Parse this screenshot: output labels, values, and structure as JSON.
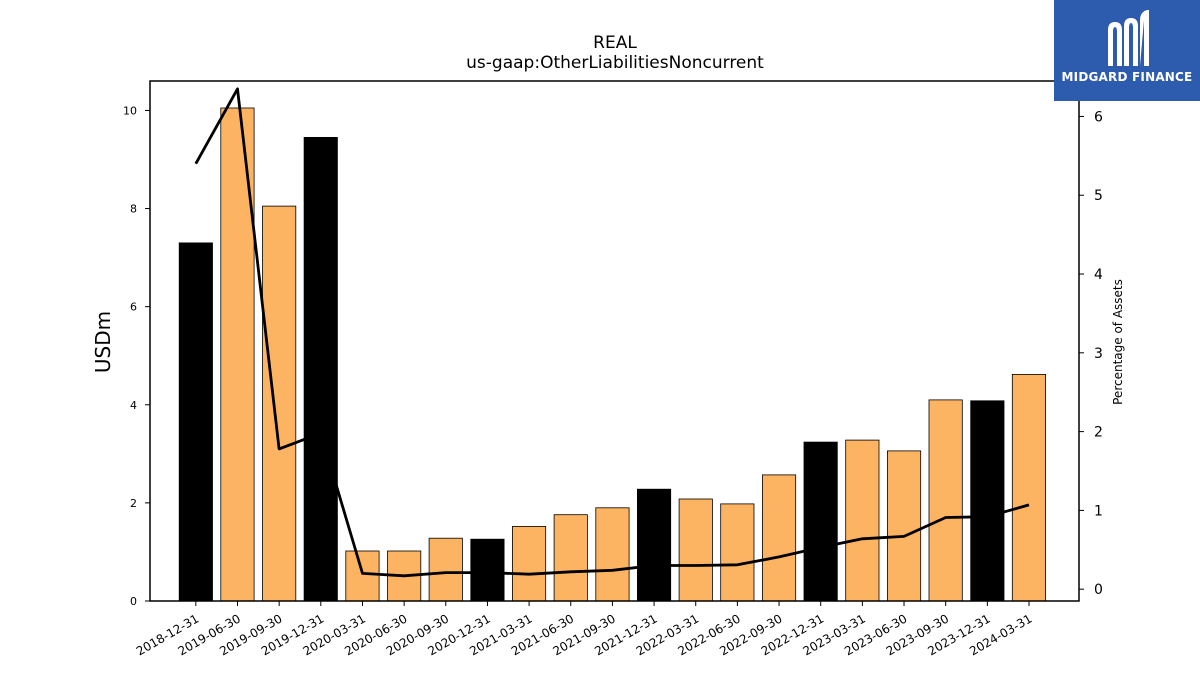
{
  "chart_data": {
    "type": "bar",
    "title": "REAL",
    "subtitle": "us-gaap:OtherLiabilitiesNoncurrent",
    "ylabel": "USDm",
    "y2label": "Percentage of Assets",
    "ylim": [
      0,
      10.6
    ],
    "y2lim": [
      -0.15,
      6.45
    ],
    "yticks": [
      0,
      2,
      4,
      6,
      8,
      10
    ],
    "y2ticks": [
      0,
      1,
      2,
      3,
      4,
      5,
      6
    ],
    "categories": [
      "2018-12-31",
      "2019-06-30",
      "2019-09-30",
      "2019-12-31",
      "2020-03-31",
      "2020-06-30",
      "2020-09-30",
      "2020-12-31",
      "2021-03-31",
      "2021-06-30",
      "2021-09-30",
      "2021-12-31",
      "2022-03-31",
      "2022-06-30",
      "2022-09-30",
      "2022-12-31",
      "2023-03-31",
      "2023-06-30",
      "2023-09-30",
      "2023-12-31",
      "2024-03-31"
    ],
    "series": [
      {
        "kind": "bar",
        "values": [
          7.3,
          10.05,
          8.05,
          9.45,
          1.02,
          1.02,
          1.28,
          1.26,
          1.52,
          1.76,
          1.9,
          2.28,
          2.08,
          1.98,
          2.57,
          3.24,
          3.28,
          3.06,
          4.1,
          4.08,
          4.62
        ],
        "highlight": [
          true,
          false,
          false,
          true,
          false,
          false,
          false,
          true,
          false,
          false,
          false,
          true,
          false,
          false,
          false,
          true,
          false,
          false,
          false,
          true,
          false
        ]
      },
      {
        "kind": "line",
        "axis": "right",
        "values": [
          5.4,
          6.35,
          1.78,
          1.98,
          0.2,
          0.17,
          0.21,
          0.21,
          0.19,
          0.22,
          0.24,
          0.3,
          0.3,
          0.31,
          0.41,
          0.53,
          0.64,
          0.67,
          0.91,
          0.92,
          1.07
        ]
      }
    ],
    "colors": {
      "bar": "#fdb462",
      "highlight": "#000000",
      "line": "#000000"
    },
    "grid": false,
    "legend": "none"
  },
  "brand": {
    "name": "MIDGARD FINANCE",
    "background": "#2d5caf",
    "icon": "midgard-logo-icon"
  }
}
